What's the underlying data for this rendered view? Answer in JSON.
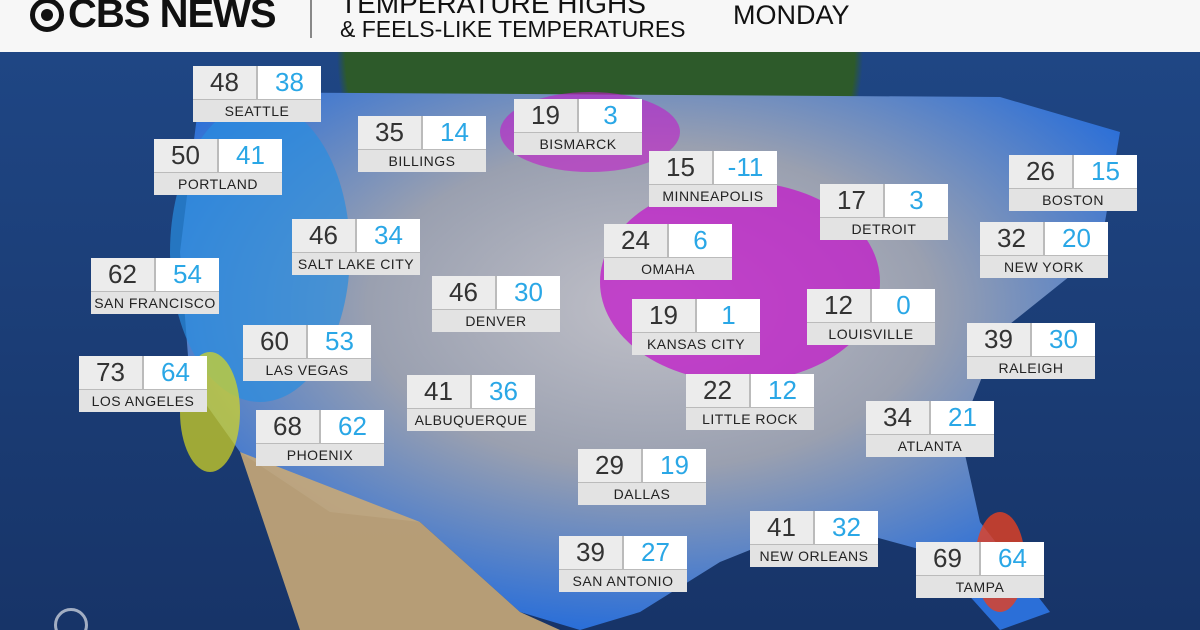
{
  "header": {
    "brand": "CBS NEWS",
    "title_line1": "TEMPERATURE HIGHS",
    "title_line2": "& FEELS-LIKE TEMPERATURES",
    "day": "MONDAY"
  },
  "colors": {
    "high": "#333333",
    "feels_like": "#2aa7e6"
  },
  "cities": [
    {
      "name": "SEATTLE",
      "high": "48",
      "feels": "38"
    },
    {
      "name": "BILLINGS",
      "high": "35",
      "feels": "14"
    },
    {
      "name": "BISMARCK",
      "high": "19",
      "feels": "3"
    },
    {
      "name": "MINNEAPOLIS",
      "high": "15",
      "feels": "-11"
    },
    {
      "name": "BOSTON",
      "high": "26",
      "feels": "15"
    },
    {
      "name": "PORTLAND",
      "high": "50",
      "feels": "41"
    },
    {
      "name": "DETROIT",
      "high": "17",
      "feels": "3"
    },
    {
      "name": "SALT LAKE CITY",
      "high": "46",
      "feels": "34"
    },
    {
      "name": "OMAHA",
      "high": "24",
      "feels": "6"
    },
    {
      "name": "NEW YORK",
      "high": "32",
      "feels": "20"
    },
    {
      "name": "SAN FRANCISCO",
      "high": "62",
      "feels": "54"
    },
    {
      "name": "DENVER",
      "high": "46",
      "feels": "30"
    },
    {
      "name": "KANSAS CITY",
      "high": "19",
      "feels": "1"
    },
    {
      "name": "LOUISVILLE",
      "high": "12",
      "feels": "0"
    },
    {
      "name": "LAS VEGAS",
      "high": "60",
      "feels": "53"
    },
    {
      "name": "RALEIGH",
      "high": "39",
      "feels": "30"
    },
    {
      "name": "LOS ANGELES",
      "high": "73",
      "feels": "64"
    },
    {
      "name": "ALBUQUERQUE",
      "high": "41",
      "feels": "36"
    },
    {
      "name": "LITTLE ROCK",
      "high": "22",
      "feels": "12"
    },
    {
      "name": "ATLANTA",
      "high": "34",
      "feels": "21"
    },
    {
      "name": "PHOENIX",
      "high": "68",
      "feels": "62"
    },
    {
      "name": "DALLAS",
      "high": "29",
      "feels": "19"
    },
    {
      "name": "NEW ORLEANS",
      "high": "41",
      "feels": "32"
    },
    {
      "name": "SAN ANTONIO",
      "high": "39",
      "feels": "27"
    },
    {
      "name": "TAMPA",
      "high": "69",
      "feels": "64"
    }
  ]
}
